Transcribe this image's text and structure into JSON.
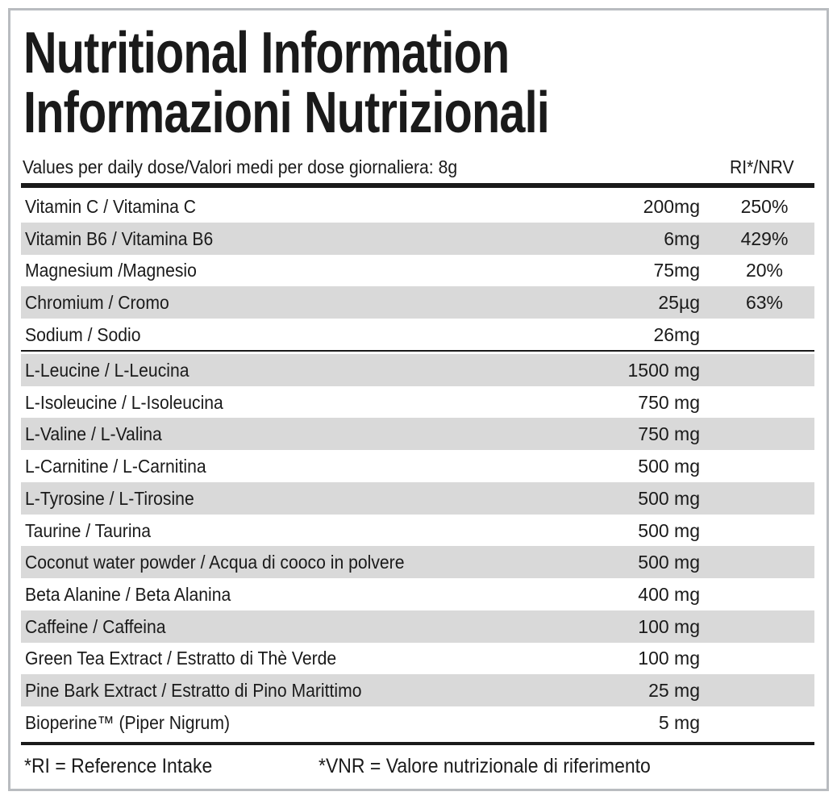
{
  "header": {
    "title_lines": [
      "Nutritional Information",
      "Informazioni Nutrizionali"
    ],
    "serving": "Values per daily dose/Valori medi per dose giornaliera: 8g",
    "ri_header": "RI*/NRV"
  },
  "vitamins": [
    {
      "name": "Vitamin C / Vitamina C",
      "amount": "200mg",
      "ri": "250%"
    },
    {
      "name": "Vitamin B6 / Vitamina B6",
      "amount": "6mg",
      "ri": "429%"
    },
    {
      "name": "Magnesium /Magnesio",
      "amount": "75mg",
      "ri": "20%"
    },
    {
      "name": "Chromium / Cromo",
      "amount": "25µg",
      "ri": "63%"
    },
    {
      "name": "Sodium / Sodio",
      "amount": "26mg"
    }
  ],
  "ingredients": [
    {
      "name": "L-Leucine / L-Leucina",
      "amount": "1500 mg"
    },
    {
      "name": "L-Isoleucine / L-Isoleucina",
      "amount": "750 mg"
    },
    {
      "name": "L-Valine / L-Valina",
      "amount": "750 mg"
    },
    {
      "name": "L-Carnitine / L-Carnitina",
      "amount": "500 mg"
    },
    {
      "name": "L-Tyrosine / L-Tirosine",
      "amount": "500 mg"
    },
    {
      "name": "Taurine / Taurina",
      "amount": "500 mg"
    },
    {
      "name": "Coconut water powder / Acqua di cooco in polvere",
      "amount": "500 mg"
    },
    {
      "name": "Beta Alanine / Beta Alanina",
      "amount": "400 mg"
    },
    {
      "name": "Caffeine / Caffeina",
      "amount": "100 mg"
    },
    {
      "name": "Green Tea Extract / Estratto di Thè Verde",
      "amount": "100 mg"
    },
    {
      "name": "Pine Bark Extract / Estratto di Pino Marittimo",
      "amount": "25 mg"
    },
    {
      "name": "Bioperine™ (Piper Nigrum)",
      "amount": "5 mg"
    }
  ],
  "footer": [
    "*RI = Reference Intake",
    "*VNR = Valore nutrizionale di riferimento"
  ]
}
